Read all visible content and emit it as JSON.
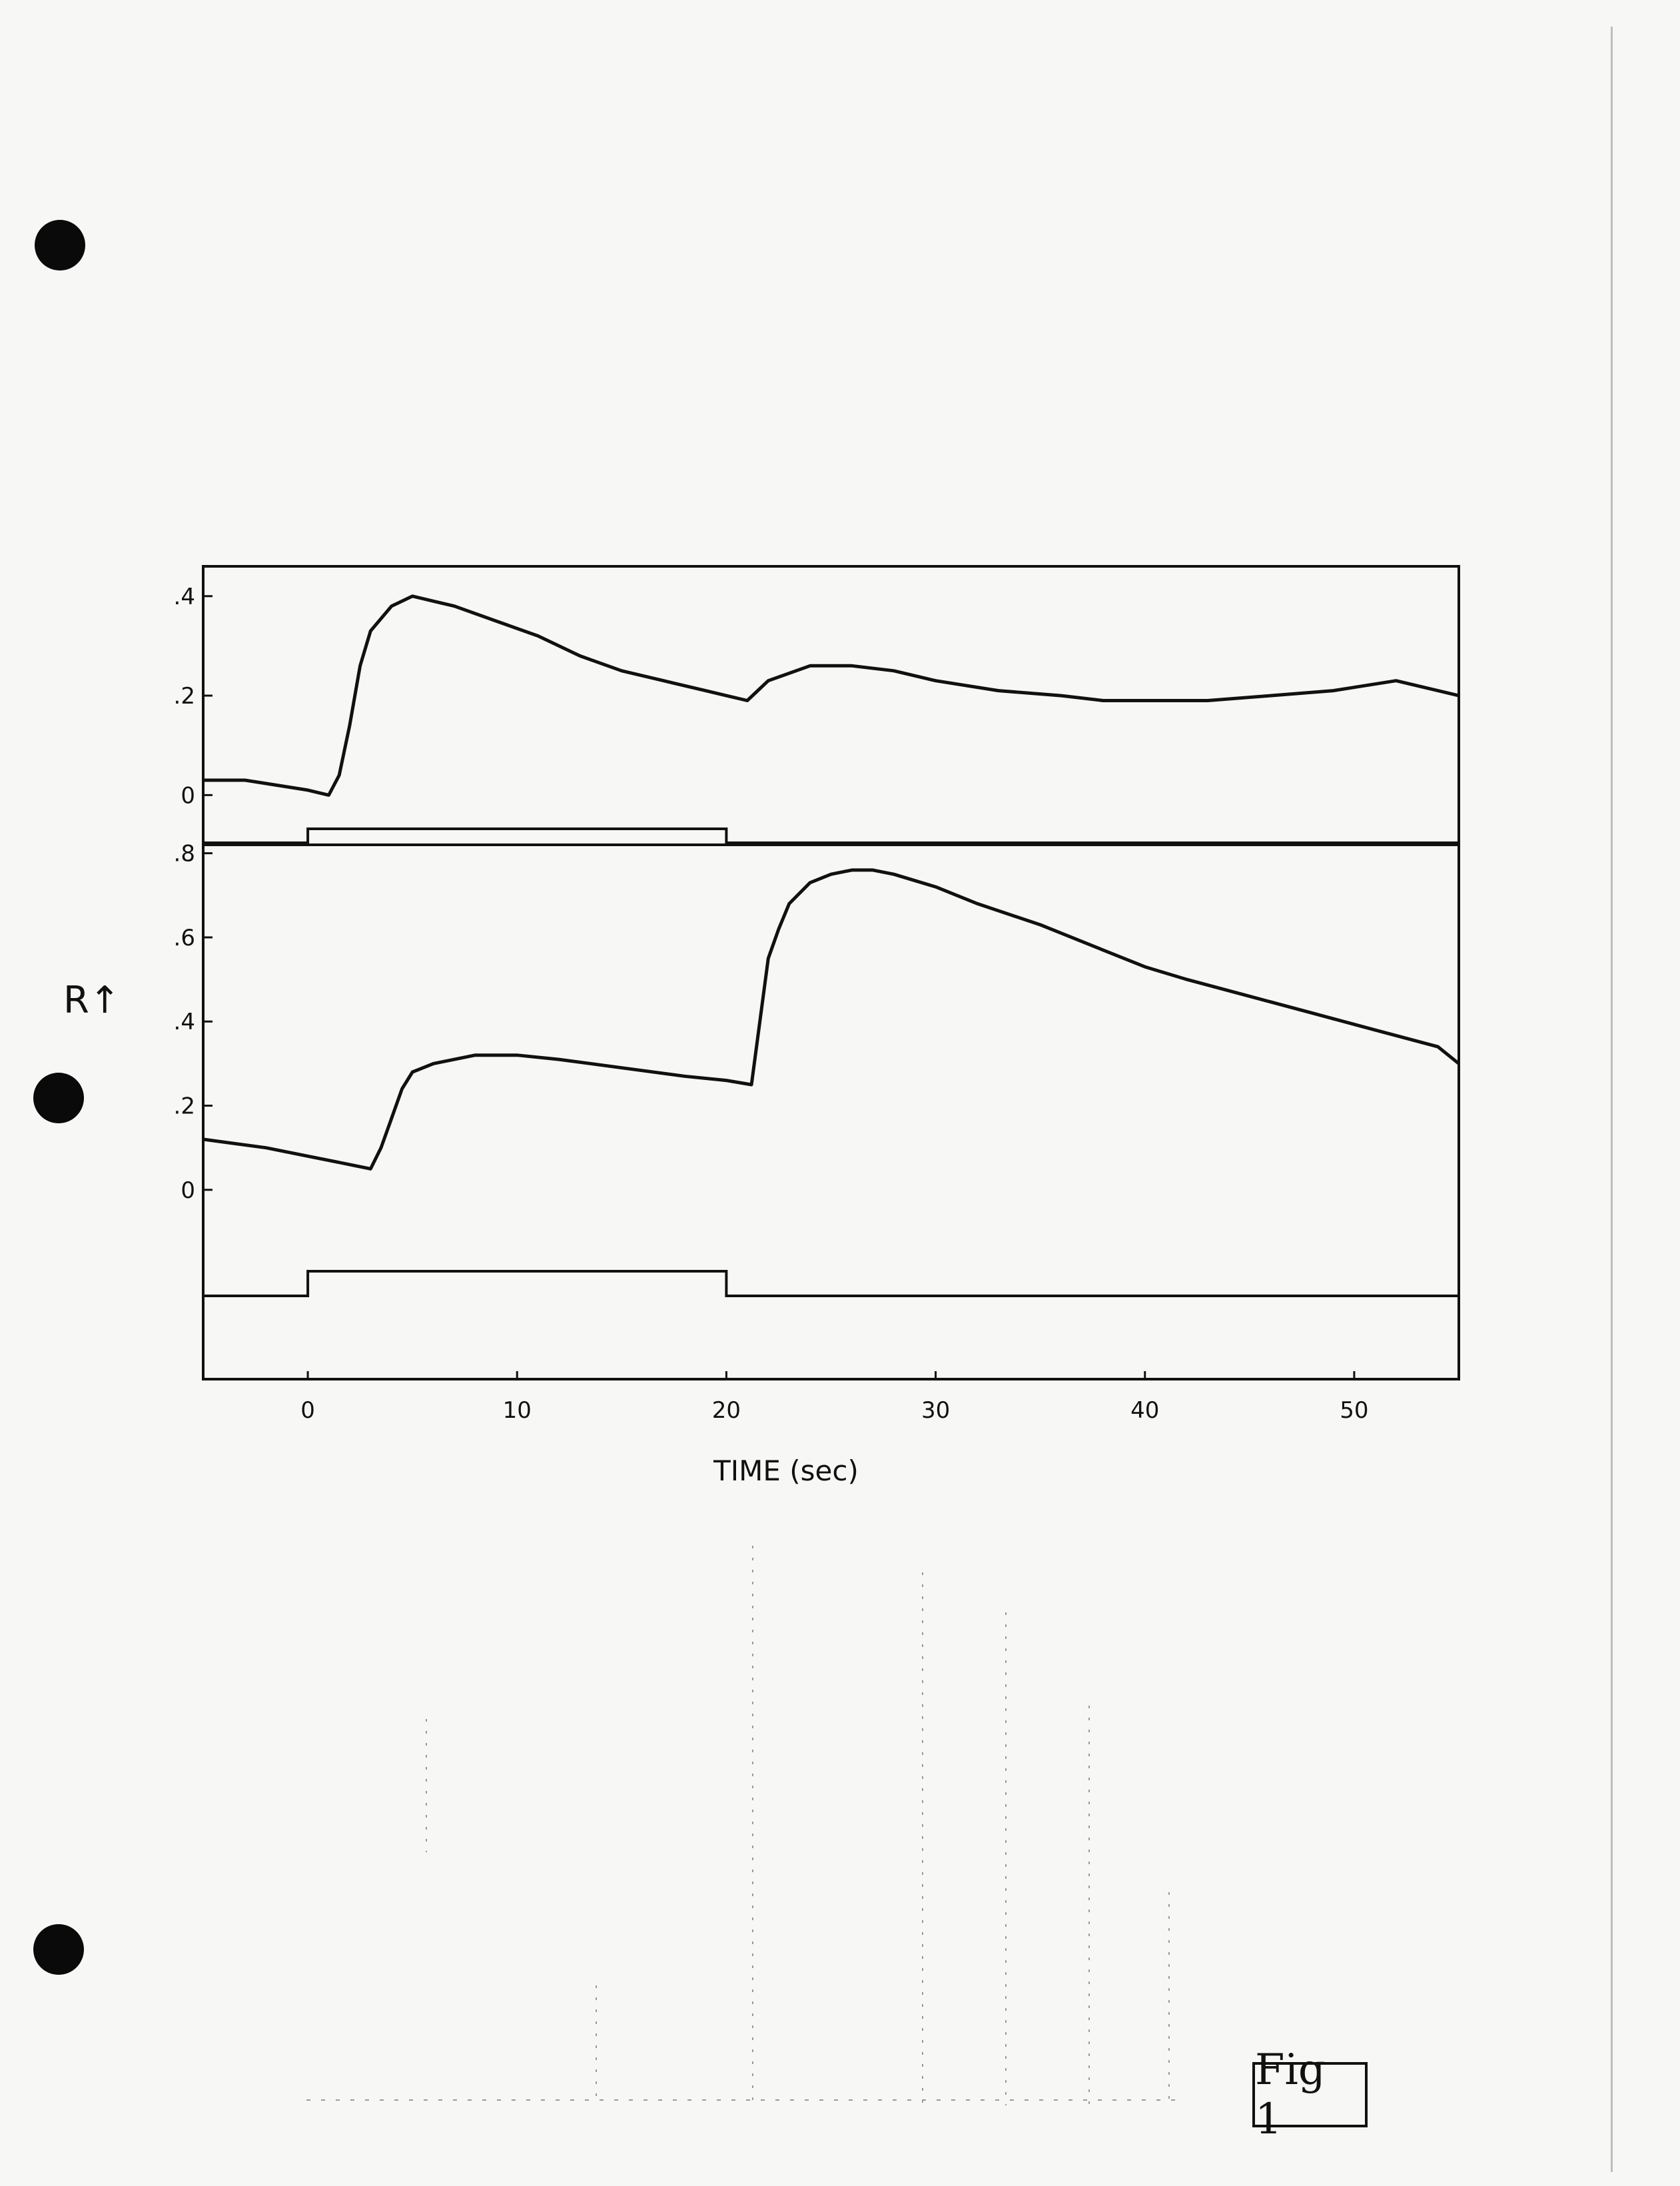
{
  "figure_label": "Fig 1",
  "chart_data": [
    {
      "type": "line",
      "panel": "upper",
      "ylabel": "",
      "y_ticks": [
        ".4",
        ".2",
        "0"
      ],
      "ylim": [
        -0.1,
        0.46
      ],
      "xlim": [
        -5,
        55
      ],
      "series": [
        {
          "x": [
            -5,
            -3,
            0,
            1,
            1.5,
            2,
            2.5,
            3,
            4,
            5,
            6,
            7,
            9,
            11,
            13,
            15,
            17,
            19,
            20,
            21,
            22,
            24,
            26,
            28,
            30,
            33,
            36,
            38,
            41,
            43,
            46,
            49,
            52,
            55
          ],
          "y": [
            0.03,
            0.03,
            0.01,
            0.0,
            0.04,
            0.14,
            0.26,
            0.33,
            0.38,
            0.4,
            0.39,
            0.38,
            0.35,
            0.32,
            0.28,
            0.25,
            0.23,
            0.21,
            0.2,
            0.19,
            0.23,
            0.26,
            0.26,
            0.25,
            0.23,
            0.21,
            0.2,
            0.19,
            0.19,
            0.19,
            0.2,
            0.21,
            0.23,
            0.2
          ]
        }
      ],
      "stimulus": {
        "x": [
          -5,
          0,
          0,
          20,
          20,
          55
        ],
        "level": [
          0,
          0,
          1,
          1,
          0,
          0
        ]
      }
    },
    {
      "type": "line",
      "panel": "lower",
      "ylabel": "R↑",
      "y_ticks": [
        ".8",
        ".6",
        ".4",
        ".2",
        "0"
      ],
      "ylim": [
        -0.45,
        0.82
      ],
      "xlim": [
        -5,
        55
      ],
      "x_ticks": [
        "0",
        "10",
        "20",
        "30",
        "40",
        "50"
      ],
      "xlabel": "TIME (sec)",
      "series": [
        {
          "x": [
            -5,
            -2,
            0,
            2,
            3,
            3.5,
            4,
            4.5,
            5,
            6,
            8,
            10,
            12,
            15,
            18,
            20,
            21.2,
            21.6,
            22,
            22.5,
            23,
            24,
            25,
            26,
            27,
            28,
            30,
            32,
            35,
            38,
            40,
            42,
            45,
            48,
            51,
            54,
            55
          ],
          "y": [
            0.12,
            0.1,
            0.08,
            0.06,
            0.05,
            0.1,
            0.17,
            0.24,
            0.28,
            0.3,
            0.32,
            0.32,
            0.31,
            0.29,
            0.27,
            0.26,
            0.25,
            0.4,
            0.55,
            0.62,
            0.68,
            0.73,
            0.75,
            0.76,
            0.76,
            0.75,
            0.72,
            0.68,
            0.63,
            0.57,
            0.53,
            0.5,
            0.46,
            0.42,
            0.38,
            0.34,
            0.3
          ]
        }
      ],
      "stimulus": {
        "x": [
          -5,
          0,
          0,
          20,
          20,
          55
        ],
        "level": [
          0,
          0,
          1,
          1,
          0,
          0
        ]
      }
    }
  ]
}
